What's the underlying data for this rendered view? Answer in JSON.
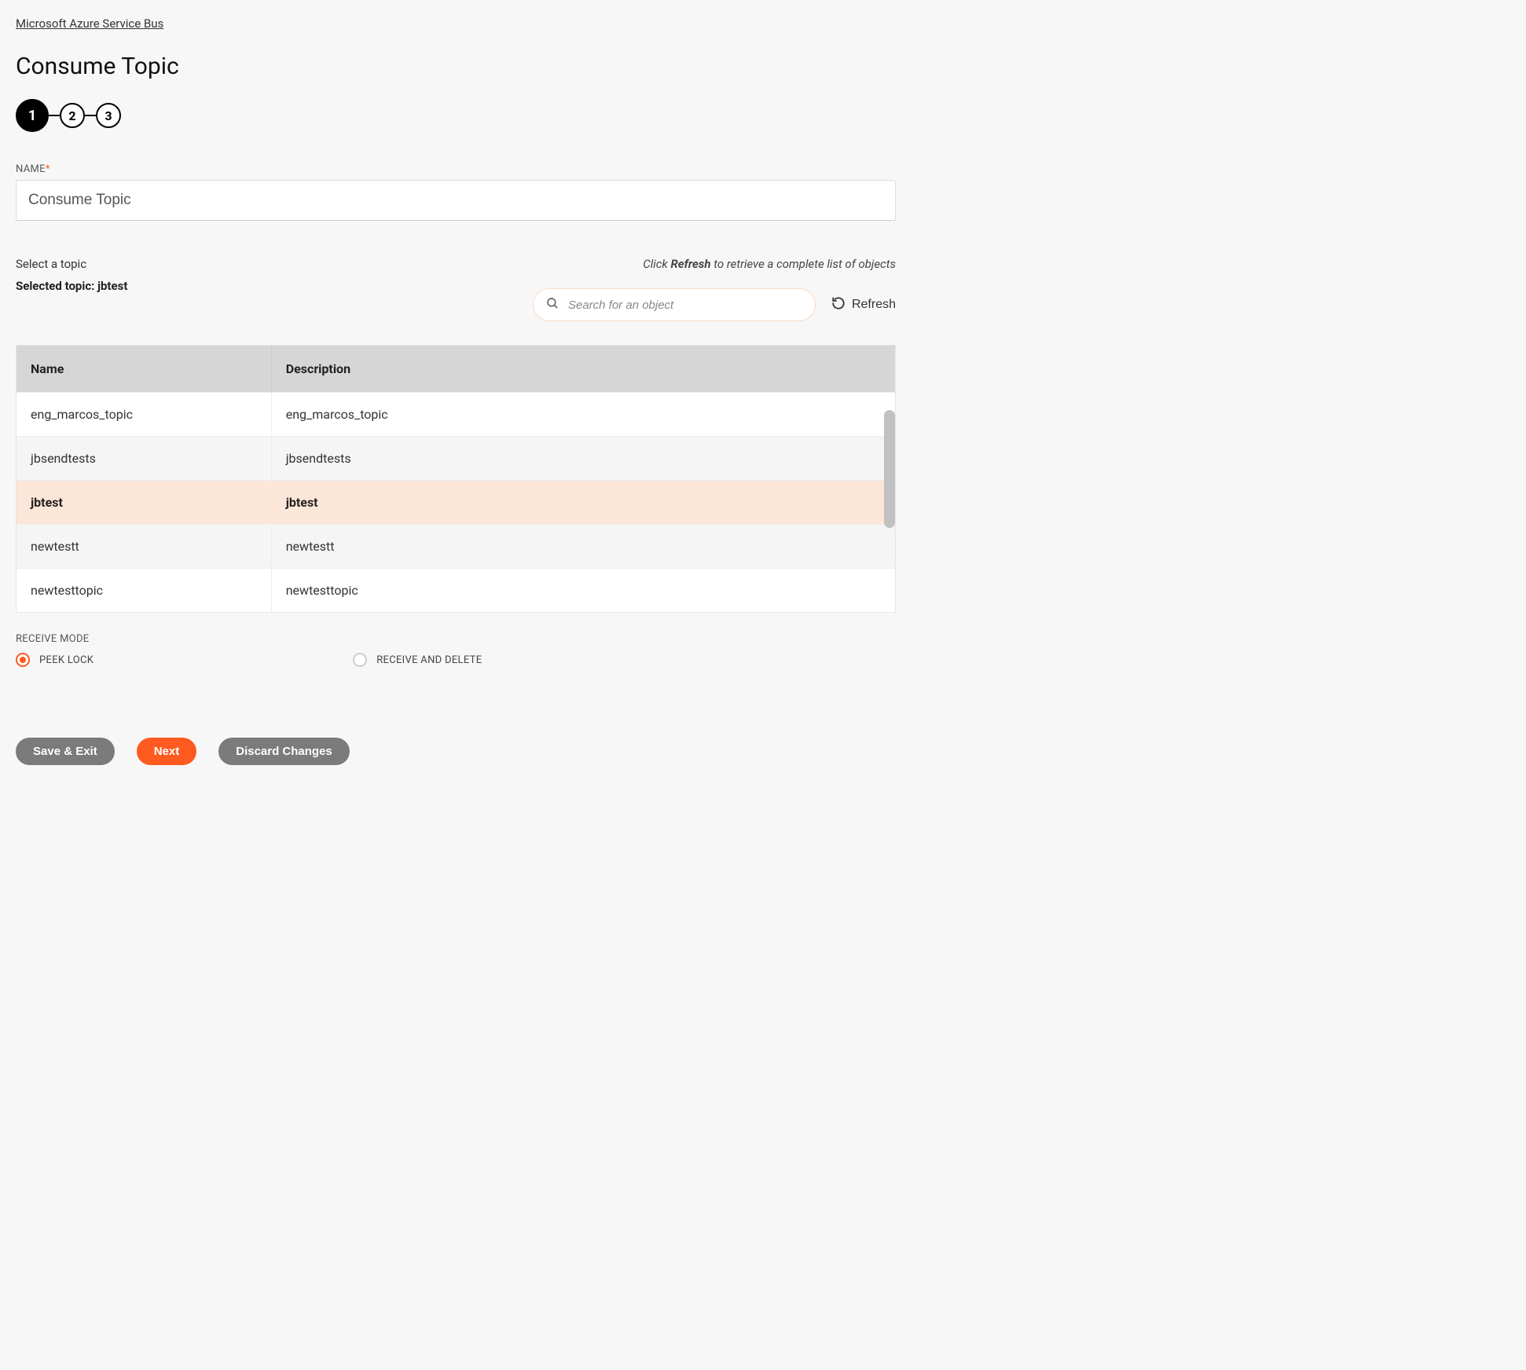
{
  "breadcrumb": {
    "label": "Microsoft Azure Service Bus"
  },
  "page": {
    "title": "Consume Topic"
  },
  "stepper": {
    "steps": [
      "1",
      "2",
      "3"
    ],
    "active_index": 0
  },
  "name_field": {
    "label": "NAME",
    "required_marker": "*",
    "value": "Consume Topic"
  },
  "topic_section": {
    "select_label": "Select a topic",
    "refresh_hint_prefix": "Click ",
    "refresh_hint_bold": "Refresh",
    "refresh_hint_suffix": " to retrieve a complete list of objects",
    "selected_prefix": "Selected topic: ",
    "selected_value": "jbtest",
    "search_placeholder": "Search for an object",
    "refresh_label": "Refresh"
  },
  "table": {
    "columns": [
      "Name",
      "Description"
    ],
    "rows": [
      {
        "name": "eng_marcos_topic",
        "description": "eng_marcos_topic",
        "selected": false
      },
      {
        "name": "jbsendtests",
        "description": "jbsendtests",
        "selected": false
      },
      {
        "name": "jbtest",
        "description": "jbtest",
        "selected": true
      },
      {
        "name": "newtestt",
        "description": "newtestt",
        "selected": false
      },
      {
        "name": "newtesttopic",
        "description": "newtesttopic",
        "selected": false
      }
    ]
  },
  "receive_mode": {
    "label": "RECEIVE MODE",
    "options": [
      {
        "label": "PEEK LOCK",
        "checked": true
      },
      {
        "label": "RECEIVE AND DELETE",
        "checked": false
      }
    ]
  },
  "actions": {
    "save_exit": "Save & Exit",
    "next": "Next",
    "discard": "Discard Changes"
  },
  "colors": {
    "accent": "#ff5a1f",
    "selected_row_bg": "#fce6d8",
    "header_bg": "#d6d6d6",
    "gray_btn": "#7b7b7b",
    "page_bg": "#f7f7f7"
  }
}
